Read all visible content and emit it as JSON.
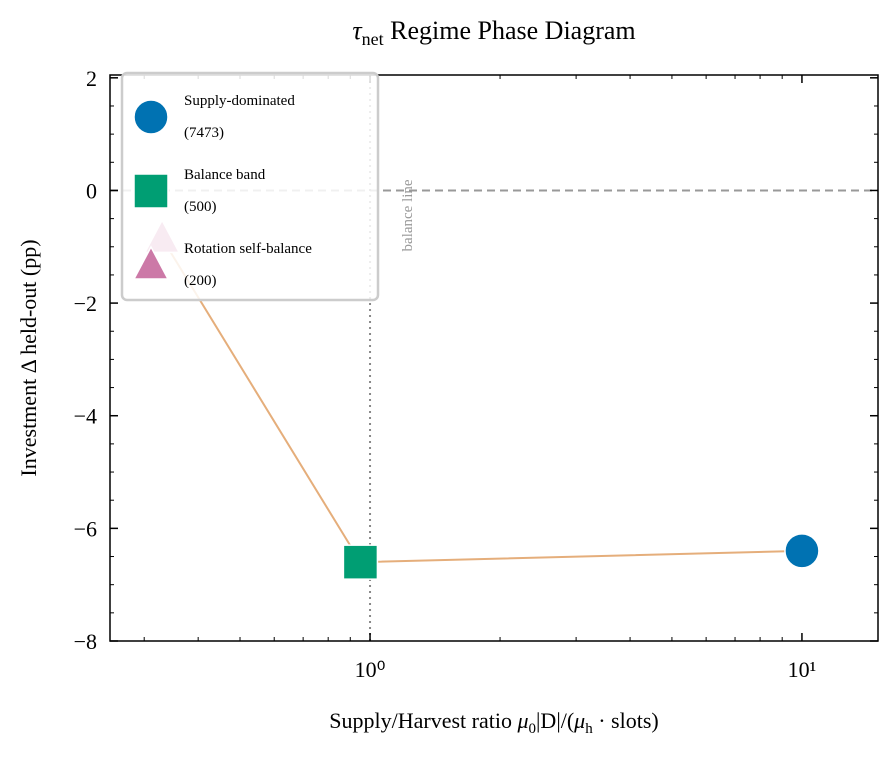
{
  "chart_data": {
    "type": "scatter",
    "title": [
      "τ",
      "net",
      " Regime Phase Diagram"
    ],
    "xlabel": [
      "Supply/Harvest ratio ",
      "μ",
      "0",
      "|D|/(",
      "μ",
      "h",
      " · slots)"
    ],
    "ylabel": "Investment Δ held-out (pp)",
    "log_x": true,
    "xlim": [
      0.25,
      15
    ],
    "ylim": [
      -8,
      2.05
    ],
    "xticks": [
      {
        "value": 1,
        "label": "10⁰"
      },
      {
        "value": 10,
        "label": "10¹"
      }
    ],
    "xminorticks": [
      0.3,
      0.4,
      0.5,
      0.6,
      0.7,
      0.8,
      0.9,
      2,
      3,
      4,
      5,
      6,
      7,
      8,
      9
    ],
    "yticks": [
      {
        "value": -8,
        "label": "−8"
      },
      {
        "value": -6,
        "label": "−6"
      },
      {
        "value": -4,
        "label": "−4"
      },
      {
        "value": -2,
        "label": "−2"
      },
      0,
      2
    ],
    "yminorticks": [
      -7.5,
      -7,
      -6.5,
      -5.5,
      -5,
      -4.5,
      -3.5,
      -3,
      -2.5,
      -1.5,
      -1,
      -0.5,
      0.5,
      1,
      1.5
    ],
    "hline": 0,
    "vline": 1,
    "vline_label": "balance line",
    "line_color": "#e5ae7b",
    "legend": "upper left",
    "series": [
      {
        "name": "Supply-dominated\n(7473)",
        "color": "#0072b2",
        "marker": "circle",
        "x": [
          10
        ],
        "values": [
          -6.4
        ]
      },
      {
        "name": "Balance band\n(500)",
        "color": "#009e73",
        "marker": "square",
        "x": [
          0.95
        ],
        "values": [
          -6.6
        ]
      },
      {
        "name": "Rotation self-balance\n(200)",
        "color": "#cc79a7",
        "marker": "triangle",
        "x": [
          0.33
        ],
        "values": [
          -0.85
        ]
      }
    ]
  }
}
